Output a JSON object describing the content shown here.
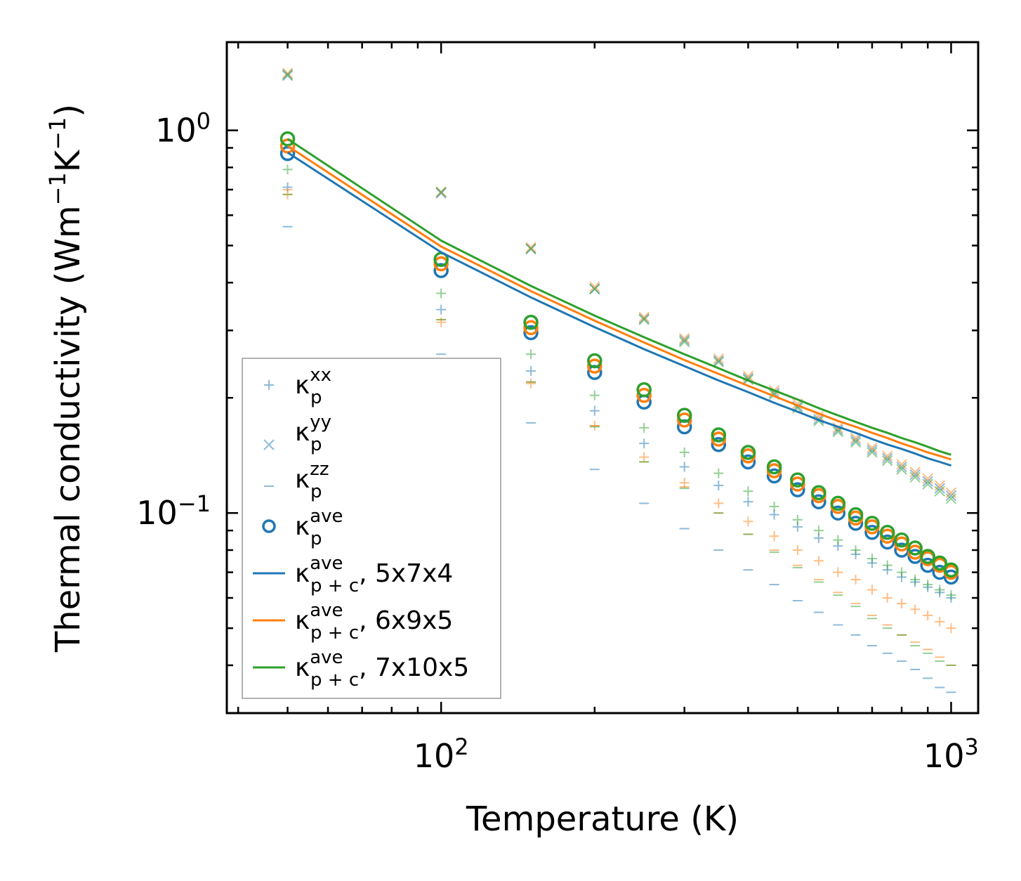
{
  "chart_data": {
    "type": "scatter",
    "xscale": "log",
    "yscale": "log",
    "xlim": [
      38,
      1130
    ],
    "ylim": [
      0.03,
      1.7
    ],
    "xlabel": "Temperature (K)",
    "ylabel": {
      "prefix": "Thermal conductivity (Wm",
      "mid": "K",
      "suffix": ")",
      "exp": "−1"
    },
    "xticks": [
      {
        "base": "10",
        "exp": "2",
        "value": 100
      },
      {
        "base": "10",
        "exp": "3",
        "value": 1000
      }
    ],
    "yticks": [
      {
        "base": "10",
        "exp": "0",
        "value": 1.0
      },
      {
        "base": "10",
        "exp": "−1",
        "value": 0.1
      }
    ],
    "temperatures": [
      50,
      100,
      150,
      200,
      250,
      300,
      350,
      400,
      450,
      500,
      550,
      600,
      650,
      700,
      750,
      800,
      850,
      900,
      950,
      1000
    ],
    "colors": {
      "blue": "#1f77b4",
      "orange": "#ff7f0e",
      "green": "#2ca02c"
    },
    "series": [
      {
        "name": "5x7x4",
        "color": "#1f77b4",
        "kxx": [
          0.71,
          0.34,
          0.235,
          0.185,
          0.152,
          0.132,
          0.118,
          0.107,
          0.099,
          0.092,
          0.086,
          0.082,
          0.078,
          0.074,
          0.071,
          0.068,
          0.066,
          0.064,
          0.062,
          0.06
        ],
        "kyy": [
          1.39,
          0.685,
          0.49,
          0.385,
          0.322,
          0.283,
          0.25,
          0.225,
          0.206,
          0.19,
          0.176,
          0.165,
          0.155,
          0.146,
          0.139,
          0.132,
          0.126,
          0.121,
          0.116,
          0.111
        ],
        "kzz": [
          0.56,
          0.26,
          0.172,
          0.13,
          0.106,
          0.091,
          0.08,
          0.071,
          0.065,
          0.059,
          0.055,
          0.051,
          0.048,
          0.045,
          0.043,
          0.041,
          0.039,
          0.037,
          0.035,
          0.034
        ],
        "kave": [
          0.87,
          0.43,
          0.296,
          0.233,
          0.195,
          0.168,
          0.151,
          0.136,
          0.125,
          0.115,
          0.107,
          0.1,
          0.094,
          0.089,
          0.084,
          0.08,
          0.077,
          0.073,
          0.07,
          0.068
        ],
        "kpc": [
          0.875,
          0.48,
          0.366,
          0.306,
          0.268,
          0.242,
          0.222,
          0.207,
          0.194,
          0.184,
          0.175,
          0.168,
          0.162,
          0.156,
          0.151,
          0.147,
          0.143,
          0.139,
          0.136,
          0.133
        ]
      },
      {
        "name": "6x9x5",
        "color": "#ff7f0e",
        "kxx": [
          0.68,
          0.315,
          0.218,
          0.169,
          0.14,
          0.12,
          0.106,
          0.095,
          0.087,
          0.08,
          0.075,
          0.07,
          0.067,
          0.063,
          0.06,
          0.058,
          0.056,
          0.054,
          0.052,
          0.05
        ],
        "kyy": [
          1.41,
          0.69,
          0.495,
          0.39,
          0.325,
          0.286,
          0.253,
          0.228,
          0.209,
          0.193,
          0.179,
          0.167,
          0.157,
          0.148,
          0.141,
          0.134,
          0.128,
          0.123,
          0.118,
          0.113
        ],
        "kzz": [
          0.7,
          0.32,
          0.22,
          0.169,
          0.136,
          0.117,
          0.1,
          0.088,
          0.08,
          0.073,
          0.067,
          0.062,
          0.058,
          0.054,
          0.051,
          0.048,
          0.046,
          0.044,
          0.042,
          0.04
        ],
        "kave": [
          0.91,
          0.448,
          0.305,
          0.242,
          0.203,
          0.175,
          0.156,
          0.141,
          0.129,
          0.119,
          0.111,
          0.104,
          0.097,
          0.092,
          0.087,
          0.083,
          0.079,
          0.076,
          0.073,
          0.07
        ],
        "kpc": [
          0.91,
          0.497,
          0.38,
          0.318,
          0.279,
          0.251,
          0.231,
          0.215,
          0.202,
          0.191,
          0.182,
          0.174,
          0.168,
          0.162,
          0.157,
          0.152,
          0.148,
          0.144,
          0.141,
          0.138
        ]
      },
      {
        "name": "7x10x5",
        "color": "#2ca02c",
        "kxx": [
          0.79,
          0.375,
          0.26,
          0.203,
          0.167,
          0.144,
          0.127,
          0.114,
          0.104,
          0.096,
          0.09,
          0.085,
          0.08,
          0.076,
          0.073,
          0.07,
          0.067,
          0.065,
          0.063,
          0.061
        ],
        "kyy": [
          1.4,
          0.69,
          0.49,
          0.385,
          0.32,
          0.28,
          0.248,
          0.223,
          0.204,
          0.188,
          0.174,
          0.163,
          0.153,
          0.144,
          0.137,
          0.13,
          0.124,
          0.119,
          0.114,
          0.109
        ],
        "kzz": [
          0.68,
          0.32,
          0.22,
          0.168,
          0.136,
          0.116,
          0.1,
          0.088,
          0.079,
          0.072,
          0.066,
          0.061,
          0.057,
          0.053,
          0.05,
          0.048,
          0.045,
          0.043,
          0.041,
          0.04
        ],
        "kave": [
          0.95,
          0.46,
          0.315,
          0.25,
          0.21,
          0.18,
          0.16,
          0.144,
          0.132,
          0.122,
          0.113,
          0.106,
          0.099,
          0.094,
          0.089,
          0.085,
          0.081,
          0.077,
          0.074,
          0.071
        ],
        "kpc": [
          0.95,
          0.515,
          0.392,
          0.328,
          0.288,
          0.26,
          0.239,
          0.222,
          0.209,
          0.198,
          0.188,
          0.18,
          0.173,
          0.167,
          0.162,
          0.157,
          0.153,
          0.149,
          0.145,
          0.142
        ]
      }
    ],
    "legend": {
      "position": "lower-left",
      "symbol": "κ",
      "entries": [
        {
          "sub": "p",
          "sup": "xx",
          "tail": "",
          "marker": "plus",
          "color": "#1f77b4"
        },
        {
          "sub": "p",
          "sup": "yy",
          "tail": "",
          "marker": "cross",
          "color": "#1f77b4"
        },
        {
          "sub": "p",
          "sup": "zz",
          "tail": "",
          "marker": "dash",
          "color": "#1f77b4"
        },
        {
          "sub": "p",
          "sup": "ave",
          "tail": "",
          "marker": "circle",
          "color": "#1f77b4"
        },
        {
          "sub": "p + c",
          "sup": "ave",
          "tail": ", 5x7x4",
          "marker": "line",
          "color": "#1f77b4"
        },
        {
          "sub": "p + c",
          "sup": "ave",
          "tail": ", 6x9x5",
          "marker": "line",
          "color": "#ff7f0e"
        },
        {
          "sub": "p + c",
          "sup": "ave",
          "tail": ", 7x10x5",
          "marker": "line",
          "color": "#2ca02c"
        }
      ]
    }
  }
}
